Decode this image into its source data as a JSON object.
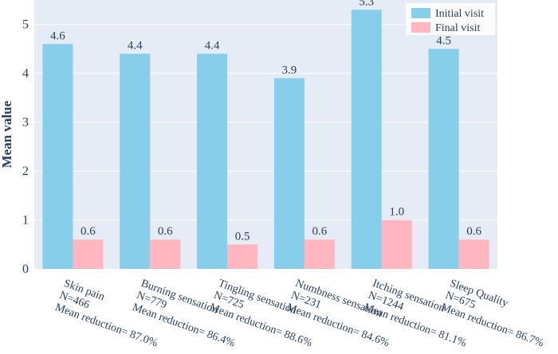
{
  "chart_data": {
    "type": "bar",
    "title": "",
    "xlabel": "",
    "ylabel": "Mean value",
    "ylim": [
      0,
      5.5
    ],
    "yticks": [
      0,
      1,
      2,
      3,
      4,
      5
    ],
    "grid": true,
    "legend_position": "top-right",
    "categories": [
      [
        "Skin pain",
        "N=466",
        "Mean reduction= 87.0%"
      ],
      [
        "Burning sensation",
        "N=779",
        "Mean reduction= 86.4%"
      ],
      [
        "Tingling sensation",
        "N=725",
        "Mean reduction= 88.6%"
      ],
      [
        "Numbness sensation",
        "N=231",
        "Mean reduction= 84.6%"
      ],
      [
        "Itching sensation",
        "N=1244",
        "Mean reduction= 81.1%"
      ],
      [
        "Sleep Quality",
        "N=675",
        "Mean reduction= 86.7%"
      ]
    ],
    "series": [
      {
        "name": "Initial visit",
        "color": "#87ceeb",
        "values": [
          4.6,
          4.4,
          4.4,
          3.9,
          5.3,
          4.5
        ],
        "labels": [
          "4.6",
          "4.4",
          "4.4",
          "3.9",
          "5.3",
          "4.5"
        ]
      },
      {
        "name": "Final visit",
        "color": "#ffb6c1",
        "values": [
          0.6,
          0.6,
          0.5,
          0.6,
          1.0,
          0.6
        ],
        "labels": [
          "0.6",
          "0.6",
          "0.5",
          "0.6",
          "1.0",
          "0.6"
        ]
      }
    ],
    "colors": {
      "plot_background": "#e5ecf6",
      "grid": "#ffffff",
      "text": "#2a3f5f"
    }
  }
}
